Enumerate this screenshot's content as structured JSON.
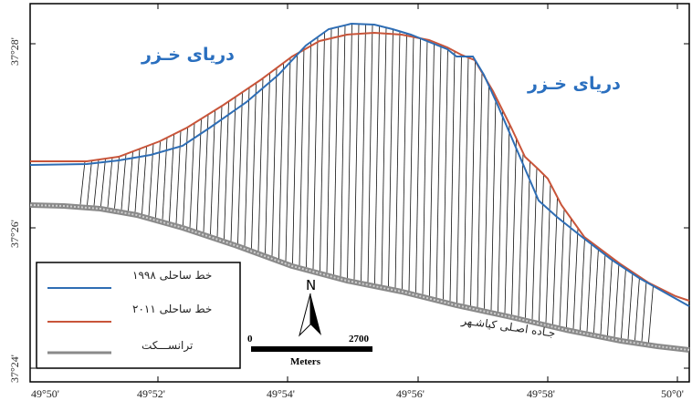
{
  "map": {
    "sea_labels": [
      "دریای خـزر",
      "دریای خـزر"
    ],
    "road_label": "جـاده اصـلی کیاشـهر",
    "north_label": "N",
    "scale": {
      "start": "0",
      "end": "2700",
      "unit": "Meters"
    },
    "x_ticks": [
      "49°50'",
      "49°52'",
      "49°54'",
      "49°56'",
      "49°58'",
      "50°0'"
    ],
    "y_ticks": [
      "37°28'",
      "37°26'",
      "37°24'"
    ],
    "legend": [
      {
        "label": "خط ساحلی ۱۹۹۸",
        "color": "#2e6db4"
      },
      {
        "label": "خط ساحلی ۲۰۱۱",
        "color": "#c8553a"
      },
      {
        "label": "ترانســـکت",
        "color": "#8a8a8a"
      }
    ],
    "colors": {
      "coast_1998": "#2e6db4",
      "coast_2011": "#c8553a",
      "transect": "#8a8a8a",
      "hatch": "#111111"
    }
  }
}
